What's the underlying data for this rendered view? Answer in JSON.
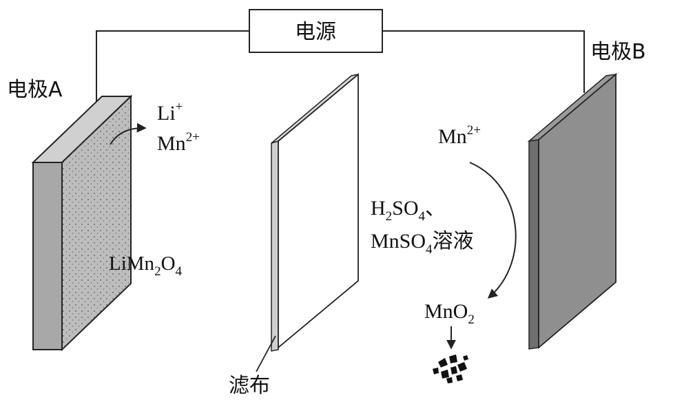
{
  "power_source": {
    "label": "电源"
  },
  "electrode_a": {
    "label": "电极A"
  },
  "electrode_b": {
    "label": "电极B"
  },
  "filter_cloth": {
    "label": "滤布"
  },
  "ions_released": {
    "li": {
      "base": "Li",
      "charge": "+"
    },
    "mn": {
      "base": "Mn",
      "charge": "2+"
    }
  },
  "ion_at_b": {
    "base": "Mn",
    "charge": "2+"
  },
  "electrode_material": {
    "p1": "LiMn",
    "s1": "2",
    "p2": "O",
    "s2": "4"
  },
  "solution": {
    "line1": {
      "p1": "H",
      "s1": "2",
      "p2": "SO",
      "s2": "4",
      "sep": "、"
    },
    "line2": {
      "p1": "MnSO",
      "s1": "4",
      "p2": "溶液"
    }
  },
  "product": {
    "p1": "MnO",
    "s1": "2"
  },
  "colors": {
    "electrode_a_face": "#bdbdbd",
    "electrode_a_side": "#a8a8a8",
    "electrode_b_face": "#8f8f8f",
    "electrode_b_side": "#6f6f6f",
    "filter_edge": "#cfcfcf",
    "line": "#222222"
  }
}
